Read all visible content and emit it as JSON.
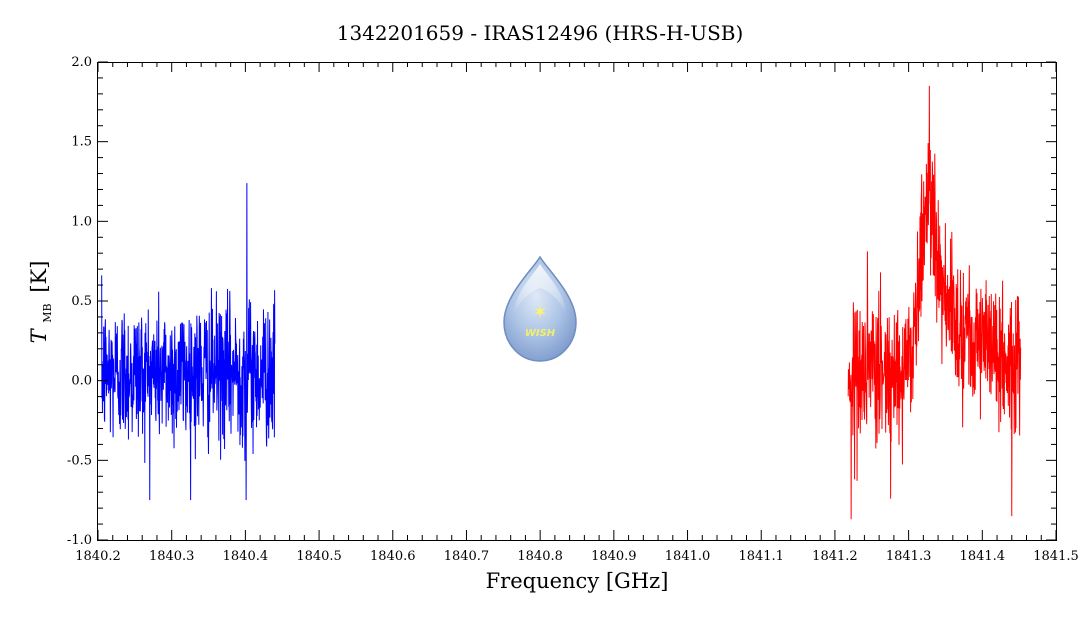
{
  "chart_data": {
    "type": "line",
    "title": "1342201659 - IRAS12496 (HRS-H-USB)",
    "xlabel": "Frequency [GHz]",
    "ylabel": {
      "main": "T",
      "subscript": "MB",
      "unit": "[K]"
    },
    "xlim": [
      1840.2,
      1841.5
    ],
    "ylim": [
      -1.0,
      2.0
    ],
    "xticks": [
      "1840.2",
      "1840.3",
      "1840.4",
      "1840.5",
      "1840.6",
      "1840.7",
      "1840.8",
      "1840.9",
      "1841.0",
      "1841.1",
      "1841.2",
      "1841.3",
      "1841.4",
      "1841.5"
    ],
    "yticks": [
      "-1.0",
      "-0.5",
      "0.0",
      "0.5",
      "1.0",
      "1.5",
      "2.0"
    ],
    "grid": false,
    "logo_text": "WISH",
    "series": [
      {
        "color": "#0000ff",
        "x_range": [
          1840.205,
          1840.44
        ],
        "points": 700,
        "baseline": 0.05,
        "noise_sigma": 0.22,
        "min": -0.75,
        "max": 1.24,
        "spikes": [
          {
            "x": 1840.402,
            "y": 1.24
          },
          {
            "x": 1840.401,
            "y": -0.75
          }
        ]
      },
      {
        "color": "#ff0000",
        "x_range": [
          1841.218,
          1841.452
        ],
        "points": 700,
        "baseline": 0.05,
        "noise_sigma": 0.22,
        "min": -0.87,
        "max": 1.85,
        "line_features": [
          {
            "center": 1841.328,
            "width": 0.012,
            "peak": 0.95
          },
          {
            "center": 1841.37,
            "width": 0.035,
            "peak": 0.3
          }
        ],
        "spikes": [
          {
            "x": 1841.328,
            "y": 1.85
          },
          {
            "x": 1841.222,
            "y": -0.87
          },
          {
            "x": 1841.44,
            "y": -0.85
          }
        ]
      }
    ]
  }
}
